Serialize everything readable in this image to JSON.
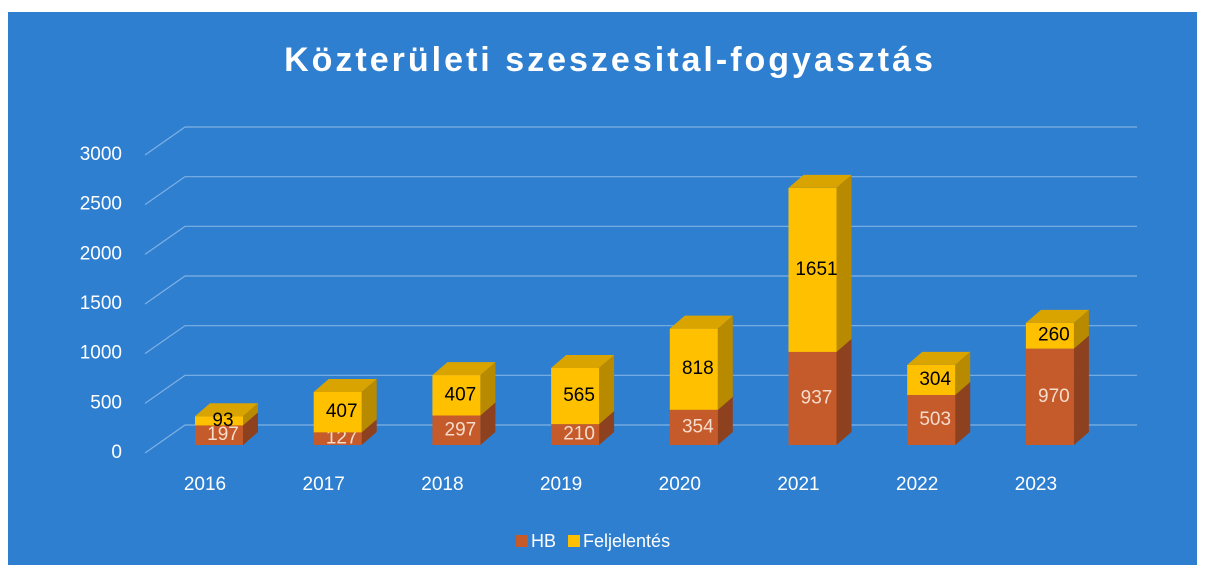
{
  "chart_data": {
    "type": "bar3d_stacked",
    "title": "Közterületi szeszesital-fogyasztás",
    "categories": [
      "2016",
      "2017",
      "2018",
      "2019",
      "2020",
      "2021",
      "2022",
      "2023"
    ],
    "series": [
      {
        "name": "HB",
        "color": "#c55a2a",
        "values": [
          197,
          127,
          297,
          210,
          354,
          937,
          503,
          970
        ]
      },
      {
        "name": "Feljelentés",
        "color": "#ffc000",
        "values": [
          93,
          407,
          407,
          565,
          818,
          1651,
          304,
          260
        ]
      }
    ],
    "ylim": [
      0,
      3000
    ],
    "yticks": [
      0,
      500,
      1000,
      1500,
      2000,
      2500,
      3000
    ],
    "grid": true,
    "legend": "bottom"
  }
}
